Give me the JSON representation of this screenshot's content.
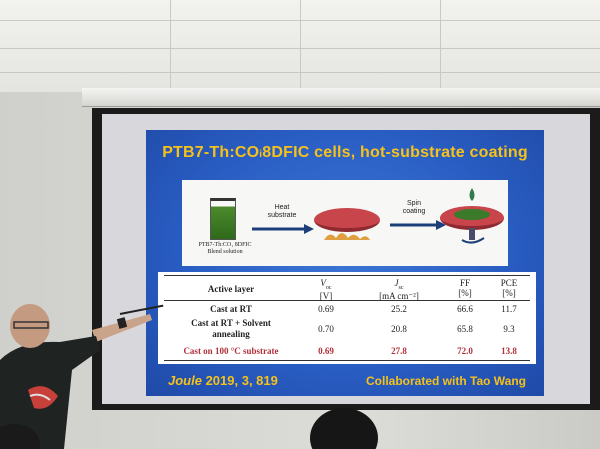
{
  "slide": {
    "title": "PTB7-Th:CO₁ 8DFIC cells, hot-substrate coating",
    "title_display": "PTB7-Th:CO",
    "title_sub": "i",
    "title_rest": "8DFIC cells, hot-substrate coating",
    "scheme": {
      "solution_caption_1": "PTB7-Th:CO₁ 8DFIC",
      "solution_caption_2": "Blend solution",
      "step1_line1": "Heat",
      "step1_line2": "substrate",
      "step2_line1": "Spin",
      "step2_line2": "coating"
    },
    "table": {
      "headers": [
        {
          "line1": "Active layer",
          "line2": ""
        },
        {
          "line1": "V",
          "line1_sub": "oc",
          "line2": "[V]"
        },
        {
          "line1": "J",
          "line1_sub": "sc",
          "line2": "[mA cm⁻²]"
        },
        {
          "line1": "FF",
          "line2": "[%]"
        },
        {
          "line1": "PCE",
          "line2": "[%]"
        }
      ],
      "rows": [
        {
          "layer": "Cast at RT",
          "layer2": "",
          "voc": "0.69",
          "jsc": "25.2",
          "ff": "66.6",
          "pce": "11.7"
        },
        {
          "layer": "Cast at RT + Solvent",
          "layer2": "annealing",
          "voc": "0.70",
          "jsc": "20.8",
          "ff": "65.8",
          "pce": "9.3"
        },
        {
          "layer": "Cast on 100 °C substrate",
          "layer2": "",
          "voc": "0.69",
          "jsc": "27.8",
          "ff": "72.0",
          "pce": "13.8"
        }
      ]
    },
    "citation_journal": "Joule",
    "citation_rest": " 2019, 3, 819",
    "collaboration": "Collaborated with Tao Wang"
  },
  "colors": {
    "slide_blue": "#2a5ec4",
    "title_yellow": "#f6c21a",
    "highlight_red": "#b0303a"
  }
}
